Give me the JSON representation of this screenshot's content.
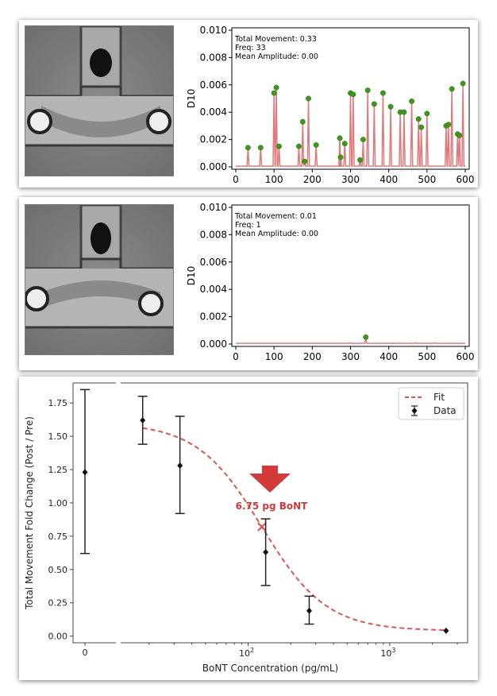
{
  "chart_data": [
    {
      "type": "line",
      "ylabel": "D10",
      "xlim": [
        0,
        600
      ],
      "ylim": [
        0,
        0.01
      ],
      "xticks": [
        0,
        100,
        200,
        300,
        400,
        500,
        600
      ],
      "yticks": [
        0.0,
        0.002,
        0.004,
        0.006,
        0.008,
        0.01
      ],
      "ytick_labels": [
        "0.000",
        "0.002",
        "0.004",
        "0.006",
        "0.008",
        "0.010"
      ],
      "annotations": [
        "Total Movement: 0.33",
        "Freq: 33",
        "Mean Amplitude: 0.00"
      ],
      "line_color": "#e07a7a",
      "peak_color": "#3a9a1a",
      "peaks": [
        {
          "x": 32,
          "y": 0.0014
        },
        {
          "x": 65,
          "y": 0.0014
        },
        {
          "x": 100,
          "y": 0.0054
        },
        {
          "x": 106,
          "y": 0.0058
        },
        {
          "x": 113,
          "y": 0.0015
        },
        {
          "x": 165,
          "y": 0.0015
        },
        {
          "x": 175,
          "y": 0.0033
        },
        {
          "x": 180,
          "y": 0.0004
        },
        {
          "x": 190,
          "y": 0.005
        },
        {
          "x": 210,
          "y": 0.0016
        },
        {
          "x": 272,
          "y": 0.0021
        },
        {
          "x": 274,
          "y": 0.0007
        },
        {
          "x": 285,
          "y": 0.0017
        },
        {
          "x": 300,
          "y": 0.0054
        },
        {
          "x": 307,
          "y": 0.0053
        },
        {
          "x": 325,
          "y": 0.0005
        },
        {
          "x": 333,
          "y": 0.002
        },
        {
          "x": 345,
          "y": 0.0056
        },
        {
          "x": 362,
          "y": 0.0046
        },
        {
          "x": 385,
          "y": 0.0054
        },
        {
          "x": 405,
          "y": 0.0044
        },
        {
          "x": 430,
          "y": 0.004
        },
        {
          "x": 440,
          "y": 0.004
        },
        {
          "x": 460,
          "y": 0.0048
        },
        {
          "x": 478,
          "y": 0.0035
        },
        {
          "x": 485,
          "y": 0.0029
        },
        {
          "x": 500,
          "y": 0.0039
        },
        {
          "x": 550,
          "y": 0.003
        },
        {
          "x": 556,
          "y": 0.0031
        },
        {
          "x": 565,
          "y": 0.0057
        },
        {
          "x": 580,
          "y": 0.0024
        },
        {
          "x": 585,
          "y": 0.0023
        },
        {
          "x": 594,
          "y": 0.0061
        }
      ]
    },
    {
      "type": "line",
      "ylabel": "D10",
      "xlim": [
        0,
        600
      ],
      "ylim": [
        0,
        0.01
      ],
      "xticks": [
        0,
        100,
        200,
        300,
        400,
        500,
        600
      ],
      "yticks": [
        0.0,
        0.002,
        0.004,
        0.006,
        0.008,
        0.01
      ],
      "ytick_labels": [
        "0.000",
        "0.002",
        "0.004",
        "0.006",
        "0.008",
        "0.010"
      ],
      "annotations": [
        "Total Movement: 0.01",
        "Freq: 1",
        "Mean Amplitude: 0.00"
      ],
      "line_color": "#e07a7a",
      "peak_color": "#3a9a1a",
      "peaks": [
        {
          "x": 340,
          "y": 0.0005
        }
      ],
      "small_bumps": [
        {
          "x": 300,
          "y": 0.0001
        },
        {
          "x": 470,
          "y": 0.0001
        },
        {
          "x": 520,
          "y": 0.0001
        }
      ]
    },
    {
      "type": "scatter",
      "xscale": "log",
      "xlabel": "BoNT Concentration (pg/mL)",
      "ylabel": "Total Movement Fold Change (Post / Pre)",
      "ylim": [
        -0.05,
        1.9
      ],
      "yticks": [
        0.0,
        0.25,
        0.5,
        0.75,
        1.0,
        1.25,
        1.5,
        1.75
      ],
      "ytick_labels": [
        "0.00",
        "0.25",
        "0.50",
        "0.75",
        "1.00",
        "1.25",
        "1.50",
        "1.75"
      ],
      "xlim_log": [
        1.1,
        3.55
      ],
      "zero_tick_label": "0",
      "xtick_labels": [
        {
          "value": 100,
          "base": "10",
          "exp": "2"
        },
        {
          "value": 1000,
          "base": "10",
          "exp": "3"
        }
      ],
      "zero_point": {
        "y": 1.23,
        "yerr_low": 0.62,
        "yerr_high": 1.85
      },
      "series": [
        {
          "name": "Data",
          "points": [
            {
              "x": 18,
              "y": 1.62,
              "yerr_low": 1.44,
              "yerr_high": 1.8
            },
            {
              "x": 33,
              "y": 1.28,
              "yerr_low": 0.92,
              "yerr_high": 1.65
            },
            {
              "x": 133,
              "y": 0.63,
              "yerr_low": 0.38,
              "yerr_high": 0.88
            },
            {
              "x": 270,
              "y": 0.19,
              "yerr_low": 0.09,
              "yerr_high": 0.3
            },
            {
              "x": 2500,
              "y": 0.04,
              "yerr_low": 0.04,
              "yerr_high": 0.04
            }
          ]
        },
        {
          "name": "Fit",
          "curve": {
            "bottom": 0.04,
            "top": 1.6,
            "ec50": 125,
            "hill": 1.9,
            "x_start": 18,
            "x_end": 2500
          }
        }
      ],
      "legend_position": "top-right",
      "annotation": {
        "text": "6.75 pg BoNT",
        "color": "#d03a3a",
        "marker_x": 125
      },
      "fit_color": "#e35252",
      "arrow_color": "#d33a3a"
    }
  ]
}
